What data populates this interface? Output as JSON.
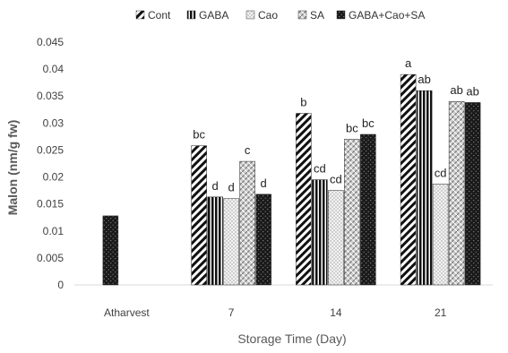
{
  "chart_data": {
    "type": "bar",
    "title": "",
    "xlabel": "Storage Time (Day)",
    "ylabel": "Malon (nm/g fw)",
    "ylim": [
      0,
      0.045
    ],
    "yticks": [
      "0",
      "0.005",
      "0.01",
      "0.015",
      "0.02",
      "0.025",
      "0.03",
      "0.035",
      "0.04",
      "0.045"
    ],
    "categories": [
      "Atharvest",
      "7",
      "14",
      "21"
    ],
    "grid": false,
    "legend_position": "top",
    "series": [
      {
        "name": "Cont",
        "values": [
          null,
          0.0258,
          0.0318,
          0.039
        ],
        "labels": [
          "",
          "bc",
          "b",
          "a"
        ]
      },
      {
        "name": "GABA",
        "values": [
          null,
          0.0163,
          0.0195,
          0.036
        ],
        "labels": [
          "",
          "d",
          "cd",
          "ab"
        ]
      },
      {
        "name": "Cao",
        "values": [
          null,
          0.016,
          0.0175,
          0.0187
        ],
        "labels": [
          "",
          "d",
          "cd",
          "cd"
        ]
      },
      {
        "name": "SA",
        "values": [
          null,
          0.0229,
          0.027,
          0.034
        ],
        "labels": [
          "",
          "c",
          "bc",
          "ab"
        ]
      },
      {
        "name": "GABA+Cao+SA",
        "values": [
          0.0128,
          0.0168,
          0.0279,
          0.0338
        ],
        "labels": [
          "",
          "d",
          "bc",
          "ab"
        ]
      }
    ]
  }
}
